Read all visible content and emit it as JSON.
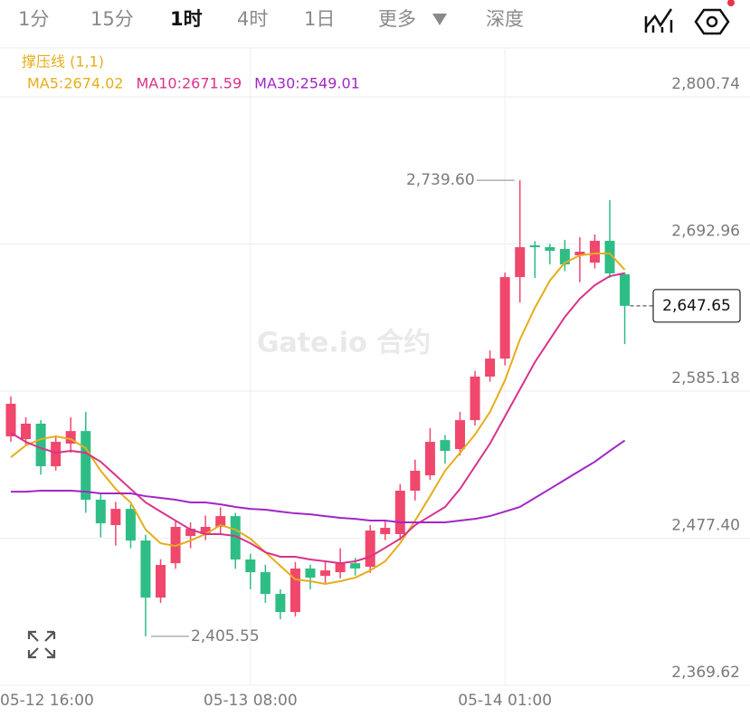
{
  "tabs": [
    "1分",
    "15分",
    "1时",
    "4时",
    "1日",
    "更多",
    "深度"
  ],
  "chart_data": {
    "type": "candlestick",
    "indicator": "撑压线 (1,1)",
    "watermark": "Gate.io 合约",
    "up_color": "#f0476d",
    "down_color": "#2ebd85",
    "categories": [
      "05-12 16:00",
      null,
      null,
      null,
      null,
      null,
      null,
      null,
      null,
      null,
      null,
      null,
      null,
      null,
      null,
      null,
      "05-13 08:00",
      null,
      null,
      null,
      null,
      null,
      null,
      null,
      null,
      null,
      null,
      null,
      null,
      null,
      null,
      null,
      null,
      "05-14 01:00",
      null,
      null,
      null,
      null,
      null,
      null,
      null,
      null
    ],
    "open": [
      2552.0,
      2550.0,
      2561.3,
      2530.1,
      2546.7,
      2555.9,
      2505.6,
      2487.0,
      2498.9,
      2475.7,
      2433.9,
      2459.1,
      2479.0,
      2480.4,
      2485.7,
      2493.6,
      2461.8,
      2452.5,
      2436.6,
      2423.3,
      2455.2,
      2449.8,
      2452.5,
      2459.1,
      2456.5,
      2480.4,
      2480.4,
      2512.2,
      2523.5,
      2549.3,
      2542.7,
      2563.9,
      2595.8,
      2609.0,
      2668.7,
      2692.0,
      2690.6,
      2689.3,
      2684.7,
      2679.3,
      2695.3,
      2670.7
    ],
    "high": [
      2581.2,
      2566,
      2564,
      2552,
      2566,
      2570,
      2510,
      2504,
      2502,
      2480,
      2462,
      2490,
      2489,
      2494,
      2500,
      2496,
      2466,
      2458,
      2440,
      2460,
      2458,
      2460,
      2470,
      2463,
      2487,
      2490,
      2517,
      2535,
      2558,
      2553,
      2570,
      2600,
      2615,
      2672,
      2739.6,
      2695,
      2693,
      2696,
      2698,
      2700,
      2725.1,
      2672
    ],
    "low": [
      2548.0,
      2546,
      2524,
      2527,
      2540,
      2496,
      2478,
      2472,
      2470,
      2405.55,
      2430,
      2455,
      2470,
      2476,
      2480,
      2455,
      2440,
      2430,
      2418,
      2420,
      2440,
      2444,
      2448,
      2450,
      2452,
      2476,
      2476,
      2505,
      2520,
      2532,
      2538,
      2560,
      2592,
      2604,
      2650,
      2668,
      2678,
      2673,
      2665,
      2675,
      2668,
      2619.6
    ],
    "close": [
      2575.9,
      2561.3,
      2530.1,
      2548.0,
      2555.9,
      2505.6,
      2488.3,
      2498.9,
      2475.7,
      2433.9,
      2457.8,
      2485.7,
      2484.3,
      2485.7,
      2493.6,
      2461.8,
      2452.5,
      2436.6,
      2423.3,
      2455.2,
      2448.5,
      2453.8,
      2459.1,
      2455.2,
      2483.0,
      2485.0,
      2512.2,
      2526.8,
      2548.0,
      2541.4,
      2563.9,
      2595.8,
      2609.0,
      2668.7,
      2690.6,
      2690.6,
      2688.0,
      2678.0,
      2687.3,
      2695.3,
      2671.4,
      2647.65
    ],
    "series": [
      {
        "name": "MA5:2674.02",
        "color": "#e6ad1c",
        "values": [
          2536.7,
          2545.4,
          2550.0,
          2552.0,
          2550.0,
          2543.4,
          2526.8,
          2513.5,
          2503.6,
          2483.7,
          2473.7,
          2471.7,
          2475.7,
          2480.4,
          2487.0,
          2483.7,
          2477.0,
          2467.1,
          2457.1,
          2447.2,
          2445.9,
          2443.9,
          2445.9,
          2448.5,
          2453.8,
          2460.5,
          2473.7,
          2490.3,
          2508.2,
          2526.8,
          2540.0,
          2553.3,
          2569.9,
          2593.1,
          2623.0,
          2646.2,
          2666.1,
          2679.3,
          2684.6,
          2686.0,
          2686.0,
          2674.02
        ]
      },
      {
        "name": "MA10:2671.59",
        "color": "#d8338a",
        "values": [
          2554.6,
          2548.0,
          2543.4,
          2540.0,
          2541.4,
          2540.0,
          2533.4,
          2523.5,
          2513.5,
          2503.6,
          2496.9,
          2490.3,
          2483.7,
          2480.4,
          2480.4,
          2479.0,
          2473.7,
          2467.1,
          2463.8,
          2463.8,
          2461.8,
          2460.5,
          2459.1,
          2460.5,
          2463.8,
          2470.4,
          2477.0,
          2487.0,
          2493.6,
          2500.3,
          2513.5,
          2530.1,
          2546.7,
          2566.6,
          2586.5,
          2606.4,
          2623.0,
          2639.5,
          2652.8,
          2662.8,
          2669.4,
          2671.59
        ]
      },
      {
        "name": "MA30:2549.01",
        "color": "#a326c6",
        "values": [
          2511.5,
          2511.5,
          2512.2,
          2512.2,
          2512.2,
          2511.5,
          2510.2,
          2510.2,
          2510.2,
          2508.2,
          2506.9,
          2505.6,
          2503.6,
          2503.6,
          2502.2,
          2500.3,
          2498.9,
          2498.3,
          2496.9,
          2495.6,
          2494.9,
          2493.6,
          2492.3,
          2491.6,
          2490.3,
          2490.3,
          2489.0,
          2489.0,
          2489.0,
          2489.0,
          2490.3,
          2491.6,
          2493.6,
          2496.9,
          2500.3,
          2506.9,
          2513.5,
          2520.2,
          2526.8,
          2533.4,
          2541.4,
          2549.01
        ]
      }
    ],
    "ylim": [
      2369.62,
      2800.74
    ],
    "yticks": [
      {
        "value": 2369.62,
        "label": "2,369.62"
      },
      {
        "value": 2477.4,
        "label": "2,477.40"
      },
      {
        "value": 2585.18,
        "label": "2,585.18"
      },
      {
        "value": 2692.96,
        "label": "2,692.96"
      },
      {
        "value": 2800.74,
        "label": "2,800.74"
      }
    ],
    "last_price": {
      "value": 2647.65,
      "label": "2,647.65"
    },
    "annotations": [
      {
        "index": 34,
        "value": 2739.6,
        "label": "2,739.60"
      },
      {
        "index": 9,
        "value": 2405.55,
        "label": "2,405.55"
      }
    ],
    "grid": true
  }
}
